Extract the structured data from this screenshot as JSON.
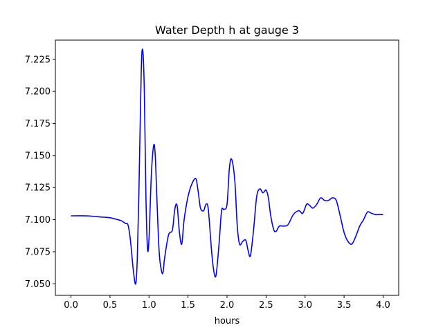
{
  "chart_data": {
    "type": "line",
    "title": "Water Depth h at gauge 3",
    "xlabel": "hours",
    "ylabel": "",
    "xlim": [
      -0.2,
      4.2
    ],
    "ylim": [
      7.041,
      7.24
    ],
    "grid": false,
    "xticks": [
      0.0,
      0.5,
      1.0,
      1.5,
      2.0,
      2.5,
      3.0,
      3.5,
      4.0
    ],
    "xtick_labels": [
      "0.0",
      "0.5",
      "1.0",
      "1.5",
      "2.0",
      "2.5",
      "3.0",
      "3.5",
      "4.0"
    ],
    "yticks": [
      7.05,
      7.075,
      7.1,
      7.125,
      7.15,
      7.175,
      7.2,
      7.225
    ],
    "ytick_labels": [
      "7.050",
      "7.075",
      "7.100",
      "7.125",
      "7.150",
      "7.175",
      "7.200",
      "7.225"
    ],
    "series": [
      {
        "color": "#0000ff",
        "x": [
          0.0,
          0.2,
          0.4,
          0.5,
          0.6,
          0.65,
          0.7,
          0.73,
          0.76,
          0.8,
          0.83,
          0.85,
          0.87,
          0.9,
          0.92,
          0.94,
          0.96,
          0.98,
          1.0,
          1.03,
          1.06,
          1.08,
          1.1,
          1.13,
          1.16,
          1.18,
          1.2,
          1.25,
          1.3,
          1.33,
          1.36,
          1.39,
          1.42,
          1.45,
          1.5,
          1.55,
          1.6,
          1.63,
          1.66,
          1.7,
          1.73,
          1.76,
          1.8,
          1.83,
          1.86,
          1.9,
          1.93,
          1.96,
          2.0,
          2.03,
          2.06,
          2.1,
          2.13,
          2.16,
          2.2,
          2.24,
          2.27,
          2.3,
          2.34,
          2.38,
          2.42,
          2.46,
          2.5,
          2.53,
          2.56,
          2.6,
          2.63,
          2.67,
          2.72,
          2.78,
          2.85,
          2.92,
          2.97,
          3.02,
          3.06,
          3.1,
          3.15,
          3.2,
          3.25,
          3.3,
          3.35,
          3.4,
          3.45,
          3.5,
          3.55,
          3.6,
          3.65,
          3.7,
          3.75,
          3.8,
          3.85,
          3.9,
          3.95,
          4.0
        ],
        "y": [
          7.103,
          7.103,
          7.102,
          7.1015,
          7.1,
          7.099,
          7.097,
          7.096,
          7.085,
          7.06,
          7.05,
          7.07,
          7.12,
          7.215,
          7.232,
          7.2,
          7.12,
          7.078,
          7.085,
          7.135,
          7.158,
          7.15,
          7.118,
          7.075,
          7.06,
          7.059,
          7.07,
          7.088,
          7.092,
          7.108,
          7.111,
          7.09,
          7.081,
          7.1,
          7.118,
          7.128,
          7.132,
          7.122,
          7.109,
          7.107,
          7.112,
          7.108,
          7.077,
          7.06,
          7.057,
          7.083,
          7.107,
          7.108,
          7.112,
          7.14,
          7.147,
          7.13,
          7.096,
          7.081,
          7.083,
          7.084,
          7.076,
          7.072,
          7.092,
          7.118,
          7.124,
          7.121,
          7.123,
          7.117,
          7.103,
          7.092,
          7.091,
          7.095,
          7.095,
          7.096,
          7.104,
          7.107,
          7.105,
          7.112,
          7.111,
          7.109,
          7.112,
          7.117,
          7.115,
          7.115,
          7.117,
          7.115,
          7.103,
          7.09,
          7.083,
          7.081,
          7.087,
          7.095,
          7.1,
          7.106,
          7.105,
          7.104,
          7.104,
          7.104
        ]
      }
    ]
  }
}
